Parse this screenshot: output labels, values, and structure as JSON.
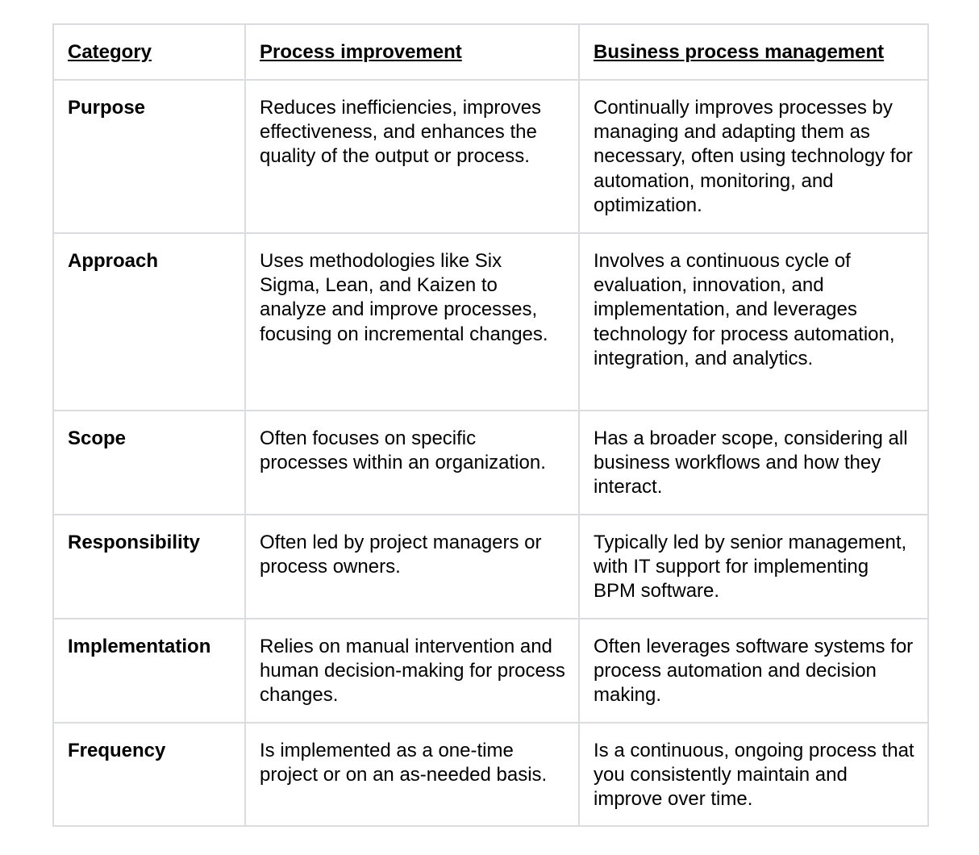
{
  "table": {
    "headers": [
      "Category",
      "Process improvement",
      "Business process management"
    ],
    "rows": [
      {
        "category": "Purpose",
        "pi": "Reduces inefficiencies, improves effectiveness, and enhances the quality of the output or process.",
        "bpm": "Continually improves processes by managing and adapting them as necessary, often using technology for automation, monitoring, and optimization."
      },
      {
        "category": "Approach",
        "pi": "Uses methodologies like Six Sigma, Lean, and Kaizen to analyze and improve processes, focusing on incremental changes.",
        "bpm": "Involves a continuous cycle of evaluation, innovation, and implementation, and leverages technology for process automation, integration, and analytics."
      },
      {
        "category": "Scope",
        "pi": "Often focuses on specific processes within an organization.",
        "bpm": "Has a broader scope, considering all business workflows and how they interact."
      },
      {
        "category": "Responsibility",
        "pi": "Often led by project managers or process owners.",
        "bpm": "Typically led by senior management, with IT support for implementing BPM software."
      },
      {
        "category": "Implementation",
        "pi": "Relies on manual intervention and human decision-making for process changes.",
        "bpm": "Often leverages software systems for process automation and decision making."
      },
      {
        "category": "Frequency",
        "pi": "Is implemented as a one-time project or on an as-needed basis.",
        "bpm": "Is a continuous, ongoing process that you consistently maintain and improve over time."
      }
    ]
  }
}
